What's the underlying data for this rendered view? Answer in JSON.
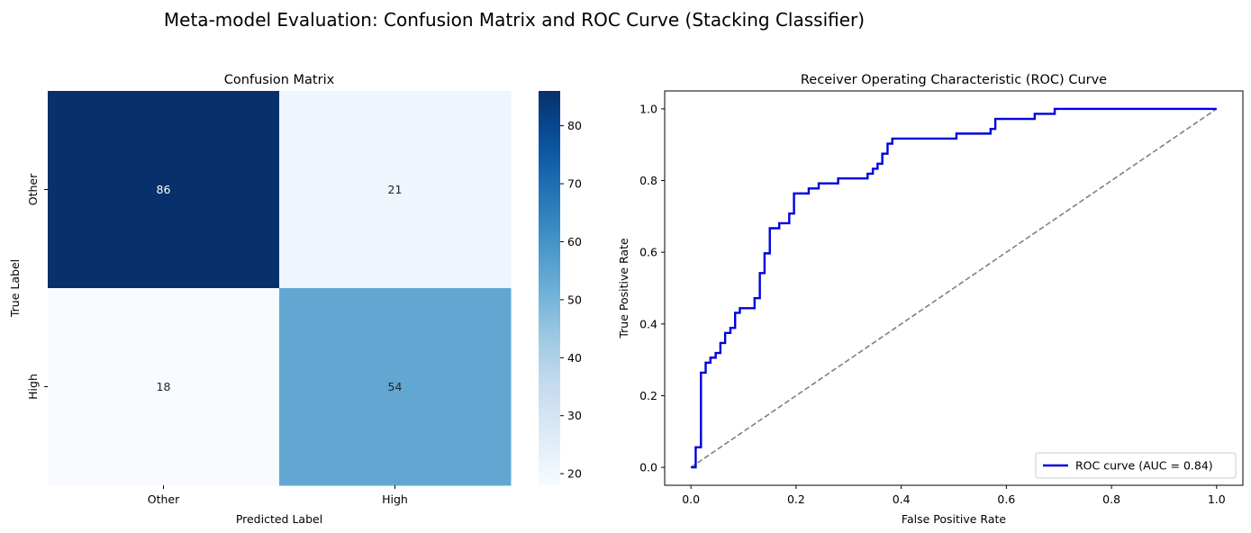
{
  "figure": {
    "suptitle": "Meta-model Evaluation: Confusion Matrix and ROC Curve (Stacking Classifier)"
  },
  "chart_data": [
    {
      "type": "heatmap",
      "title": "Confusion Matrix",
      "xlabel": "Predicted Label",
      "ylabel": "True Label",
      "x_categories": [
        "Other",
        "High"
      ],
      "y_categories": [
        "Other",
        "High"
      ],
      "matrix": [
        [
          86,
          21
        ],
        [
          18,
          54
        ]
      ],
      "colormap": "Blues",
      "colorbar": {
        "range": [
          18,
          86
        ],
        "ticks": [
          20,
          30,
          40,
          50,
          60,
          70,
          80
        ]
      }
    },
    {
      "type": "line",
      "title": "Receiver Operating Characteristic (ROC) Curve",
      "xlabel": "False Positive Rate",
      "ylabel": "True Positive Rate",
      "xlim": [
        -0.05,
        1.05
      ],
      "ylim": [
        -0.05,
        1.05
      ],
      "xticks": [
        0.0,
        0.2,
        0.4,
        0.6,
        0.8,
        1.0
      ],
      "yticks": [
        0.0,
        0.2,
        0.4,
        0.6,
        0.8,
        1.0
      ],
      "grid": false,
      "legend_position": "lower-right",
      "series": [
        {
          "name": "ROC curve (AUC = 0.84)",
          "color": "#0000dd",
          "style": "solid",
          "points": [
            [
              0.0,
              0.0
            ],
            [
              0.009,
              0.0
            ],
            [
              0.009,
              0.056
            ],
            [
              0.019,
              0.056
            ],
            [
              0.019,
              0.264
            ],
            [
              0.028,
              0.264
            ],
            [
              0.028,
              0.292
            ],
            [
              0.037,
              0.292
            ],
            [
              0.037,
              0.306
            ],
            [
              0.047,
              0.306
            ],
            [
              0.047,
              0.319
            ],
            [
              0.056,
              0.319
            ],
            [
              0.056,
              0.347
            ],
            [
              0.065,
              0.347
            ],
            [
              0.065,
              0.375
            ],
            [
              0.075,
              0.375
            ],
            [
              0.075,
              0.389
            ],
            [
              0.084,
              0.389
            ],
            [
              0.084,
              0.431
            ],
            [
              0.093,
              0.431
            ],
            [
              0.093,
              0.444
            ],
            [
              0.121,
              0.444
            ],
            [
              0.121,
              0.472
            ],
            [
              0.131,
              0.472
            ],
            [
              0.131,
              0.542
            ],
            [
              0.14,
              0.542
            ],
            [
              0.14,
              0.597
            ],
            [
              0.15,
              0.597
            ],
            [
              0.15,
              0.667
            ],
            [
              0.168,
              0.667
            ],
            [
              0.168,
              0.681
            ],
            [
              0.187,
              0.681
            ],
            [
              0.187,
              0.708
            ],
            [
              0.196,
              0.708
            ],
            [
              0.196,
              0.764
            ],
            [
              0.224,
              0.764
            ],
            [
              0.224,
              0.778
            ],
            [
              0.243,
              0.778
            ],
            [
              0.243,
              0.792
            ],
            [
              0.28,
              0.792
            ],
            [
              0.28,
              0.806
            ],
            [
              0.336,
              0.806
            ],
            [
              0.336,
              0.819
            ],
            [
              0.346,
              0.819
            ],
            [
              0.346,
              0.833
            ],
            [
              0.355,
              0.833
            ],
            [
              0.355,
              0.847
            ],
            [
              0.364,
              0.847
            ],
            [
              0.364,
              0.875
            ],
            [
              0.374,
              0.875
            ],
            [
              0.374,
              0.903
            ],
            [
              0.383,
              0.903
            ],
            [
              0.383,
              0.917
            ],
            [
              0.505,
              0.917
            ],
            [
              0.505,
              0.931
            ],
            [
              0.57,
              0.931
            ],
            [
              0.57,
              0.944
            ],
            [
              0.579,
              0.944
            ],
            [
              0.579,
              0.972
            ],
            [
              0.654,
              0.972
            ],
            [
              0.654,
              0.986
            ],
            [
              0.692,
              0.986
            ],
            [
              0.692,
              1.0
            ],
            [
              1.0,
              1.0
            ]
          ]
        },
        {
          "name": "",
          "color": "#808080",
          "style": "dashed",
          "points": [
            [
              0.0,
              0.0
            ],
            [
              1.0,
              1.0
            ]
          ]
        }
      ]
    }
  ]
}
